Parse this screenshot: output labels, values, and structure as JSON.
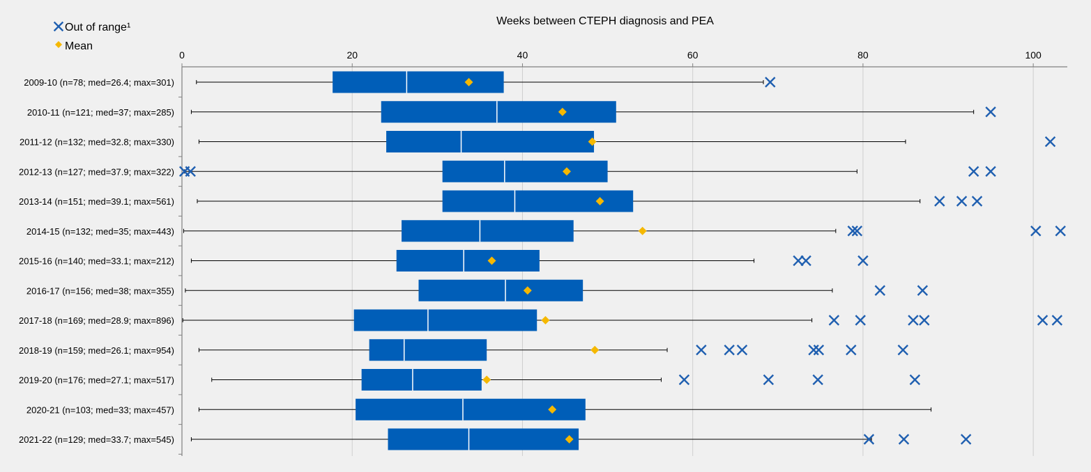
{
  "chart_data": {
    "type": "boxplot",
    "title": "Weeks between CTEPH diagnosis and PEA",
    "legend": {
      "placement": "top-left",
      "entries": [
        {
          "name": "Out of range¹",
          "marker": "x",
          "color": "#1f5fb0"
        },
        {
          "name": "Mean",
          "marker": "diamond",
          "color": "#f5b800"
        }
      ]
    },
    "xlim": [
      0,
      104
    ],
    "xticks": [
      0,
      20,
      40,
      60,
      80,
      100
    ],
    "grid": "vertical",
    "colors": {
      "box": "#005eb8",
      "median": "#ffffff",
      "mean": "#f5b800",
      "outlier": "#1f5fb0",
      "whisker": "#000000",
      "axis": "#7f7f7f",
      "grid": "#cfcfcf"
    },
    "categories": [
      {
        "label": "2009-10 (n=78; med=26.4; max=301)",
        "whisker_low": 1.7,
        "q1": 17.7,
        "median": 26.4,
        "q3": 37.8,
        "whisker_high": 68.3,
        "mean": 33.7,
        "outliers": [
          69.1
        ]
      },
      {
        "label": "2010-11 (n=121; med=37; max=285)",
        "whisker_low": 1.1,
        "q1": 23.4,
        "median": 37.0,
        "q3": 51.0,
        "whisker_high": 93.0,
        "mean": 44.7,
        "outliers": [
          95.0
        ]
      },
      {
        "label": "2011-12 (n=132; med=32.8; max=330)",
        "whisker_low": 2.0,
        "q1": 24.0,
        "median": 32.8,
        "q3": 48.4,
        "whisker_high": 85.0,
        "mean": 48.2,
        "outliers": [
          102.0
        ]
      },
      {
        "label": "2012-13 (n=127; med=37.9; max=322)",
        "whisker_low": 0.3,
        "q1": 30.6,
        "median": 37.9,
        "q3": 50.0,
        "whisker_high": 79.3,
        "mean": 45.2,
        "outliers": [
          0.3,
          1.0,
          93.0,
          95.0
        ]
      },
      {
        "label": "2013-14 (n=151; med=39.1; max=561)",
        "whisker_low": 1.8,
        "q1": 30.6,
        "median": 39.1,
        "q3": 53.0,
        "whisker_high": 86.7,
        "mean": 49.1,
        "outliers": [
          89.0,
          91.6,
          93.4
        ]
      },
      {
        "label": "2014-15 (n=132; med=35; max=443)",
        "whisker_low": 0.2,
        "q1": 25.8,
        "median": 35.0,
        "q3": 46.0,
        "whisker_high": 76.8,
        "mean": 54.1,
        "outliers": [
          78.8,
          79.3,
          100.3,
          103.2
        ]
      },
      {
        "label": "2015-16 (n=140; med=33.1; max=212)",
        "whisker_low": 1.1,
        "q1": 25.2,
        "median": 33.1,
        "q3": 42.0,
        "whisker_high": 67.2,
        "mean": 36.4,
        "outliers": [
          72.4,
          73.3,
          80.0
        ]
      },
      {
        "label": "2016-17 (n=156; med=38; max=355)",
        "whisker_low": 0.4,
        "q1": 27.8,
        "median": 38.0,
        "q3": 47.1,
        "whisker_high": 76.4,
        "mean": 40.6,
        "outliers": [
          82.0,
          87.0
        ]
      },
      {
        "label": "2017-18 (n=169; med=28.9; max=896)",
        "whisker_low": 0.1,
        "q1": 20.2,
        "median": 28.9,
        "q3": 41.7,
        "whisker_high": 74.0,
        "mean": 42.7,
        "outliers": [
          76.6,
          79.7,
          85.9,
          87.2,
          101.1,
          102.8
        ]
      },
      {
        "label": "2018-19 (n=159; med=26.1; max=954)",
        "whisker_low": 2.0,
        "q1": 22.0,
        "median": 26.1,
        "q3": 35.8,
        "whisker_high": 57.0,
        "mean": 48.5,
        "outliers": [
          61.0,
          64.3,
          65.8,
          74.2,
          74.8,
          78.6,
          84.7
        ]
      },
      {
        "label": "2019-20 (n=176; med=27.1; max=517)",
        "whisker_low": 3.5,
        "q1": 21.1,
        "median": 27.1,
        "q3": 35.2,
        "whisker_high": 56.3,
        "mean": 35.8,
        "outliers": [
          59.0,
          68.9,
          74.7,
          86.1
        ]
      },
      {
        "label": "2020-21 (n=103; med=33; max=457)",
        "whisker_low": 2.0,
        "q1": 20.4,
        "median": 33.0,
        "q3": 47.4,
        "whisker_high": 88.0,
        "mean": 43.5,
        "outliers": []
      },
      {
        "label": "2021-22 (n=129; med=33.7; max=545)",
        "whisker_low": 1.1,
        "q1": 24.2,
        "median": 33.7,
        "q3": 46.6,
        "whisker_high": 81.0,
        "mean": 45.5,
        "outliers": [
          80.7,
          84.8,
          92.1
        ]
      }
    ]
  }
}
